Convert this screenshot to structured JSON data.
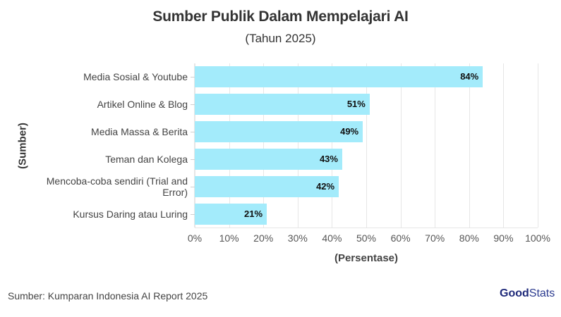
{
  "header": {
    "title": "Sumber Publik Dalam Mempelajari AI",
    "subtitle": "(Tahun 2025)"
  },
  "footer": {
    "source": "Sumber: Kumparan Indonesia AI Report 2025",
    "logo_bold": "Good",
    "logo_light": "Stats"
  },
  "colors": {
    "bar": "#a3ebfb",
    "grid": "#e6e6e6",
    "text": "#333333"
  },
  "chart_data": {
    "type": "bar",
    "orientation": "horizontal",
    "title": "Sumber Publik Dalam Mempelajari AI",
    "subtitle": "(Tahun 2025)",
    "xlabel": "(Persentase)",
    "ylabel": "(Sumber)",
    "categories": [
      "Media Sosial & Youtube",
      "Artikel Online & Blog",
      "Media Massa & Berita",
      "Teman dan Kolega",
      "Mencoba-coba sendiri (Trial and Error)",
      "Kursus Daring atau Luring"
    ],
    "values": [
      84,
      51,
      49,
      43,
      42,
      21
    ],
    "value_labels": [
      "84%",
      "51%",
      "49%",
      "43%",
      "42%",
      "21%"
    ],
    "xlim": [
      0,
      100
    ],
    "xticks": [
      "0%",
      "10%",
      "20%",
      "30%",
      "40%",
      "50%",
      "60%",
      "70%",
      "80%",
      "90%",
      "100%"
    ],
    "grid": true,
    "legend": null
  }
}
